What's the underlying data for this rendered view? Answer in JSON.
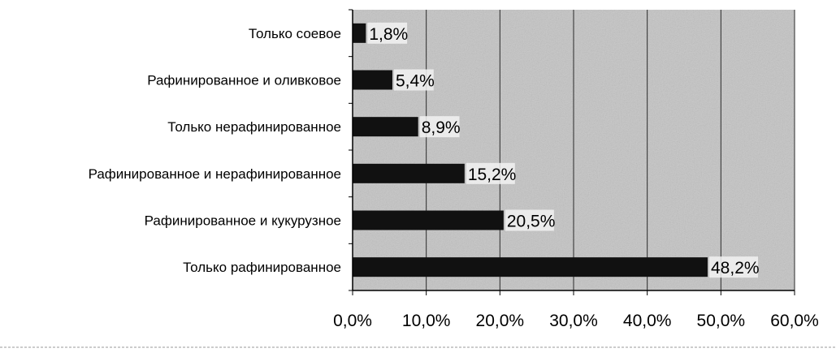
{
  "chart_data": {
    "type": "bar",
    "orientation": "horizontal",
    "categories": [
      "Только соевое",
      "Рафинированное и оливковое",
      "Только нерафинированное",
      "Рафинированное  и нерафинированное",
      "Рафинированное и кукурузное",
      "Только рафинированное"
    ],
    "values": [
      1.8,
      5.4,
      8.9,
      15.2,
      20.5,
      48.2
    ],
    "data_labels": [
      "1,8%",
      "5,4%",
      "8,9%",
      "15,2%",
      "20,5%",
      "48,2%"
    ],
    "xlim": [
      0,
      60
    ],
    "xticks": [
      0,
      10,
      20,
      30,
      40,
      50,
      60
    ],
    "xtick_labels": [
      "0,0%",
      "10,0%",
      "20,0%",
      "30,0%",
      "40,0%",
      "50,0%",
      "60,0%"
    ],
    "title": "",
    "xlabel": "",
    "ylabel": "",
    "grid": "vertical",
    "legend": "none",
    "colors": {
      "bar": "#111111",
      "plot_background": "#c4c4c4",
      "gridline": "#2a2a2a",
      "axis": "#000000"
    }
  }
}
